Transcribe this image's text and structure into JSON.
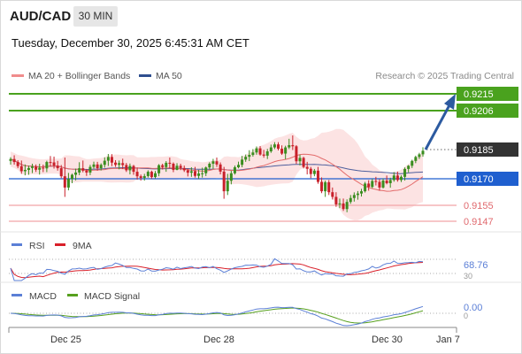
{
  "header": {
    "pair": "AUD/CAD",
    "timeframe": "30 MIN"
  },
  "datetime": "Tuesday, December 30, 2025 6:45:31 AM CET",
  "legend": {
    "ma_bb": {
      "label": "MA 20 + Bollinger Bands",
      "color": "#f08c8c"
    },
    "ma50": {
      "label": "MA 50",
      "color": "#2f4f8f"
    }
  },
  "credit": "Research © 2025 Trading Central",
  "levels": {
    "resistance_2": {
      "value": "0.9215",
      "color": "#4aa21e"
    },
    "resistance_1": {
      "value": "0.9206",
      "color": "#4aa21e"
    },
    "last": {
      "value": "0.9185",
      "color": "#333333"
    },
    "pivot": {
      "value": "0.9170",
      "color": "#1f5fcf"
    },
    "support_1": {
      "value": "0.9155",
      "color": "#e0696e"
    },
    "support_2": {
      "value": "0.9147",
      "color": "#e0696e"
    }
  },
  "rsi_panel": {
    "rsi_label": "RSI",
    "rsi_color": "#5b7fd6",
    "ma_label": "9MA",
    "ma_color": "#d9202a",
    "value": "68.76"
  },
  "macd_panel": {
    "macd_label": "MACD",
    "macd_color": "#5b7fd6",
    "signal_label": "MACD Signal",
    "signal_color": "#57a01e",
    "value": "0.00"
  },
  "x_axis": {
    "labels": [
      "Dec 25",
      "Dec 28",
      "Dec 30",
      "Jan 7"
    ]
  },
  "chart_data": {
    "type": "candlestick",
    "instrument": "AUD/CAD",
    "interval": "30 MIN",
    "yrange": [
      0.914,
      0.9222
    ],
    "price_levels": [
      0.9215,
      0.9206,
      0.9185,
      0.917,
      0.9155,
      0.9147
    ],
    "candles": [
      [
        0.91792,
        0.91812,
        0.91772,
        0.91802
      ],
      [
        0.91802,
        0.91822,
        0.91772,
        0.91786
      ],
      [
        0.91786,
        0.91796,
        0.91753,
        0.91764
      ],
      [
        0.91764,
        0.91794,
        0.91723,
        0.91737
      ],
      [
        0.91737,
        0.91773,
        0.91715,
        0.91744
      ],
      [
        0.91744,
        0.91767,
        0.91718,
        0.91754
      ],
      [
        0.91754,
        0.91777,
        0.91727,
        0.91762
      ],
      [
        0.91762,
        0.91773,
        0.91733,
        0.91745
      ],
      [
        0.91745,
        0.91777,
        0.91719,
        0.91756
      ],
      [
        0.91756,
        0.91772,
        0.91732,
        0.91752
      ],
      [
        0.91752,
        0.91793,
        0.91732,
        0.91786
      ],
      [
        0.91786,
        0.91818,
        0.91762,
        0.91784
      ],
      [
        0.91784,
        0.91815,
        0.91751,
        0.91767
      ],
      [
        0.91767,
        0.91792,
        0.9174,
        0.91753
      ],
      [
        0.91753,
        0.9177,
        0.917,
        0.9171
      ],
      [
        0.9171,
        0.9181,
        0.916,
        0.9165
      ],
      [
        0.9165,
        0.91728,
        0.91635,
        0.91696
      ],
      [
        0.91696,
        0.91724,
        0.91673,
        0.91718
      ],
      [
        0.91718,
        0.91751,
        0.91688,
        0.9173
      ],
      [
        0.9173,
        0.91785,
        0.91716,
        0.91753
      ],
      [
        0.91753,
        0.91794,
        0.91731,
        0.9174
      ],
      [
        0.9174,
        0.91749,
        0.91712,
        0.9173
      ],
      [
        0.9173,
        0.91771,
        0.91716,
        0.9176
      ],
      [
        0.9176,
        0.91788,
        0.91751,
        0.91773
      ],
      [
        0.91773,
        0.91787,
        0.9174,
        0.91753
      ],
      [
        0.91753,
        0.91779,
        0.91741,
        0.91771
      ],
      [
        0.91771,
        0.91811,
        0.91756,
        0.91793
      ],
      [
        0.91793,
        0.91829,
        0.91765,
        0.91813
      ],
      [
        0.91813,
        0.91828,
        0.91764,
        0.91783
      ],
      [
        0.91783,
        0.91796,
        0.9176,
        0.91771
      ],
      [
        0.91771,
        0.91794,
        0.91747,
        0.9178
      ],
      [
        0.9178,
        0.91804,
        0.91749,
        0.9177
      ],
      [
        0.9177,
        0.91781,
        0.91733,
        0.91742
      ],
      [
        0.91742,
        0.91778,
        0.9172,
        0.91765
      ],
      [
        0.91765,
        0.91771,
        0.91718,
        0.91734
      ],
      [
        0.91734,
        0.91756,
        0.91692,
        0.9171
      ],
      [
        0.9171,
        0.91719,
        0.91687,
        0.91701
      ],
      [
        0.91701,
        0.91723,
        0.91687,
        0.91711
      ],
      [
        0.91711,
        0.91742,
        0.91703,
        0.91734
      ],
      [
        0.91734,
        0.9174,
        0.91697,
        0.91706
      ],
      [
        0.91706,
        0.91738,
        0.91699,
        0.91726
      ],
      [
        0.91726,
        0.91775,
        0.9171,
        0.91769
      ],
      [
        0.91769,
        0.91777,
        0.91746,
        0.91759
      ],
      [
        0.91759,
        0.91791,
        0.91734,
        0.91782
      ],
      [
        0.91782,
        0.9181,
        0.91753,
        0.91777
      ],
      [
        0.91777,
        0.91784,
        0.91732,
        0.91744
      ],
      [
        0.91744,
        0.9178,
        0.91742,
        0.91766
      ],
      [
        0.91766,
        0.91777,
        0.91743,
        0.91754
      ],
      [
        0.91754,
        0.91767,
        0.91733,
        0.91742
      ],
      [
        0.91742,
        0.91751,
        0.91709,
        0.91729
      ],
      [
        0.91729,
        0.91758,
        0.91707,
        0.91737
      ],
      [
        0.91737,
        0.9176,
        0.91703,
        0.91712
      ],
      [
        0.91712,
        0.91744,
        0.91696,
        0.91725
      ],
      [
        0.91725,
        0.91756,
        0.91703,
        0.91726
      ],
      [
        0.91726,
        0.91762,
        0.91711,
        0.91757
      ],
      [
        0.91757,
        0.91785,
        0.91745,
        0.91777
      ],
      [
        0.91777,
        0.91803,
        0.9175,
        0.9179
      ],
      [
        0.9179,
        0.9181,
        0.9176,
        0.91773
      ],
      [
        0.91773,
        0.91784,
        0.9172,
        0.91735
      ],
      [
        0.91735,
        0.9176,
        0.9159,
        0.9163
      ],
      [
        0.9163,
        0.91723,
        0.9161,
        0.91686
      ],
      [
        0.91686,
        0.91739,
        0.91667,
        0.91726
      ],
      [
        0.91726,
        0.91767,
        0.91719,
        0.91758
      ],
      [
        0.91758,
        0.91788,
        0.91752,
        0.91771
      ],
      [
        0.91771,
        0.91819,
        0.91758,
        0.91799
      ],
      [
        0.91799,
        0.91826,
        0.91787,
        0.91814
      ],
      [
        0.91814,
        0.91849,
        0.91791,
        0.91824
      ],
      [
        0.91824,
        0.91855,
        0.91815,
        0.91837
      ],
      [
        0.91837,
        0.91869,
        0.91825,
        0.91859
      ],
      [
        0.91859,
        0.91871,
        0.9182,
        0.91826
      ],
      [
        0.91826,
        0.91851,
        0.91809,
        0.9182
      ],
      [
        0.9182,
        0.91856,
        0.91802,
        0.91843
      ],
      [
        0.91843,
        0.91879,
        0.91835,
        0.91864
      ],
      [
        0.91864,
        0.91892,
        0.91855,
        0.9188
      ],
      [
        0.9188,
        0.91892,
        0.91848,
        0.91857
      ],
      [
        0.91857,
        0.91875,
        0.91824,
        0.91831
      ],
      [
        0.91831,
        0.91873,
        0.91801,
        0.91864
      ],
      [
        0.91864,
        0.9191,
        0.91855,
        0.91876
      ],
      [
        0.91876,
        0.91928,
        0.9185,
        0.9187
      ],
      [
        0.9187,
        0.91876,
        0.91776,
        0.9179
      ],
      [
        0.9179,
        0.91825,
        0.91768,
        0.91808
      ],
      [
        0.91808,
        0.91814,
        0.91752,
        0.9176
      ],
      [
        0.9176,
        0.91787,
        0.9172,
        0.9175
      ],
      [
        0.9175,
        0.9176,
        0.917,
        0.91722
      ],
      [
        0.91722,
        0.91749,
        0.9171,
        0.9174
      ],
      [
        0.9174,
        0.9176,
        0.9167,
        0.9168
      ],
      [
        0.9168,
        0.91704,
        0.9162,
        0.9163
      ],
      [
        0.9163,
        0.91687,
        0.916,
        0.91678
      ],
      [
        0.91678,
        0.9169,
        0.9161,
        0.91625
      ],
      [
        0.91625,
        0.9165,
        0.91586,
        0.916
      ],
      [
        0.916,
        0.91625,
        0.91547,
        0.9156
      ],
      [
        0.9156,
        0.91591,
        0.9154,
        0.91565
      ],
      [
        0.91565,
        0.91591,
        0.91525,
        0.91535
      ],
      [
        0.91535,
        0.91587,
        0.91518,
        0.91573
      ],
      [
        0.91573,
        0.9161,
        0.91563,
        0.91594
      ],
      [
        0.91594,
        0.91624,
        0.91575,
        0.9161
      ],
      [
        0.9161,
        0.91631,
        0.91585,
        0.91618
      ],
      [
        0.91618,
        0.91643,
        0.91602,
        0.9163
      ],
      [
        0.9163,
        0.9168,
        0.91623,
        0.91671
      ],
      [
        0.91671,
        0.91689,
        0.91633,
        0.91653
      ],
      [
        0.91653,
        0.91696,
        0.91646,
        0.91685
      ],
      [
        0.91685,
        0.91707,
        0.91661,
        0.9168
      ],
      [
        0.9168,
        0.91694,
        0.91634,
        0.9165
      ],
      [
        0.9165,
        0.91698,
        0.91645,
        0.91687
      ],
      [
        0.91687,
        0.91714,
        0.91667,
        0.91673
      ],
      [
        0.91673,
        0.91702,
        0.91649,
        0.9169
      ],
      [
        0.9169,
        0.91732,
        0.91681,
        0.91714
      ],
      [
        0.91714,
        0.91735,
        0.91681,
        0.9169
      ],
      [
        0.9169,
        0.91715,
        0.91679,
        0.91707
      ],
      [
        0.91707,
        0.91757,
        0.91687,
        0.91749
      ],
      [
        0.91749,
        0.9177,
        0.91731,
        0.91766
      ],
      [
        0.91766,
        0.91798,
        0.91754,
        0.91792
      ],
      [
        0.91792,
        0.9182,
        0.9178,
        0.91813
      ],
      [
        0.91813,
        0.91835,
        0.91802,
        0.91827
      ],
      [
        0.91827,
        0.91865,
        0.91815,
        0.91846
      ]
    ],
    "rsi_last": 68.76,
    "macd_last": 0.0
  }
}
